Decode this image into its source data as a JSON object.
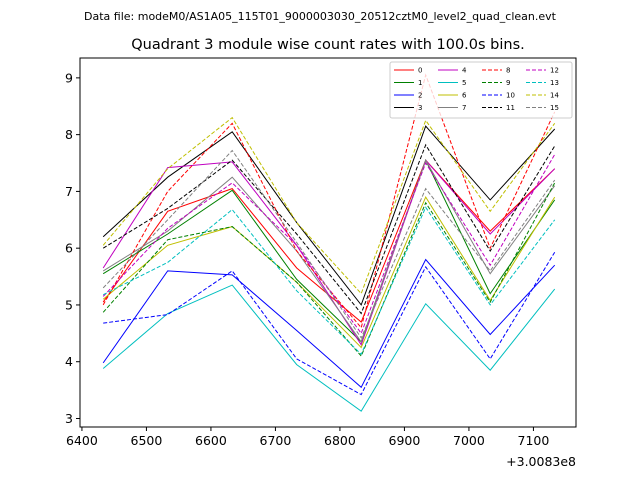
{
  "chart_data": {
    "type": "line",
    "suptitle": "Data file: modeM0/AS1A05_115T01_9000003030_20512cztM0_level2_quad_clean.evt",
    "title": "Quadrant 3 module wise count rates with 100.0s bins.",
    "xlabel": "",
    "ylabel": "",
    "x_offset_label": "+3.0083e8",
    "x": [
      6433,
      6533,
      6633,
      6733,
      6833,
      6933,
      7033,
      7133
    ],
    "xlim": [
      6397,
      7166
    ],
    "ylim": [
      2.85,
      9.35
    ],
    "x_ticks": [
      6400,
      6500,
      6600,
      6700,
      6800,
      6900,
      7000,
      7100
    ],
    "y_ticks": [
      3,
      4,
      5,
      6,
      7,
      8,
      9
    ],
    "grid": false,
    "legend_position": "top-right",
    "legend_columns": 4,
    "series": [
      {
        "name": "0",
        "color": "#ff0000",
        "dash": "solid",
        "values": [
          5.05,
          6.65,
          7.05,
          5.65,
          4.7,
          7.55,
          6.3,
          7.4
        ]
      },
      {
        "name": "1",
        "color": "#008000",
        "dash": "solid",
        "values": [
          5.55,
          6.25,
          7.02,
          5.45,
          4.35,
          7.55,
          5.2,
          6.85
        ]
      },
      {
        "name": "2",
        "color": "#0000ff",
        "dash": "solid",
        "values": [
          3.98,
          5.6,
          5.53,
          4.55,
          3.55,
          5.8,
          4.48,
          5.7
        ]
      },
      {
        "name": "3",
        "color": "#000000",
        "dash": "solid",
        "values": [
          6.2,
          7.25,
          8.05,
          6.45,
          5.0,
          8.15,
          6.85,
          8.1
        ]
      },
      {
        "name": "4",
        "color": "#c000c0",
        "dash": "solid",
        "values": [
          5.65,
          7.42,
          7.52,
          6.05,
          4.3,
          7.55,
          6.25,
          7.4
        ]
      },
      {
        "name": "5",
        "color": "#00bfbf",
        "dash": "solid",
        "values": [
          3.88,
          4.85,
          5.35,
          3.95,
          3.13,
          5.02,
          3.85,
          5.28
        ]
      },
      {
        "name": "6",
        "color": "#bfbf00",
        "dash": "solid",
        "values": [
          5.1,
          6.05,
          6.38,
          5.4,
          4.25,
          6.9,
          5.08,
          6.9
        ]
      },
      {
        "name": "7",
        "color": "#808080",
        "dash": "solid",
        "values": [
          5.6,
          6.3,
          7.25,
          5.95,
          4.35,
          7.55,
          5.55,
          7.1
        ]
      },
      {
        "name": "8",
        "color": "#ff0000",
        "dash": "dashed",
        "values": [
          5.0,
          7.0,
          8.2,
          5.95,
          4.6,
          9.05,
          6.0,
          8.4
        ]
      },
      {
        "name": "9",
        "color": "#008000",
        "dash": "dashed",
        "values": [
          4.87,
          6.15,
          6.38,
          5.4,
          4.1,
          6.8,
          5.05,
          7.15
        ]
      },
      {
        "name": "10",
        "color": "#0000ff",
        "dash": "dashed",
        "values": [
          4.68,
          4.83,
          5.6,
          4.05,
          3.42,
          5.67,
          4.05,
          5.93
        ]
      },
      {
        "name": "11",
        "color": "#000000",
        "dash": "dashed",
        "values": [
          6.0,
          6.7,
          7.55,
          6.25,
          4.85,
          7.82,
          5.95,
          7.8
        ]
      },
      {
        "name": "12",
        "color": "#c000c0",
        "dash": "dashed",
        "values": [
          5.15,
          6.35,
          7.15,
          6.05,
          4.5,
          7.5,
          5.7,
          7.65
        ]
      },
      {
        "name": "13",
        "color": "#00bfbf",
        "dash": "dashed",
        "values": [
          5.18,
          5.75,
          6.68,
          5.25,
          4.13,
          6.72,
          5.0,
          6.5
        ]
      },
      {
        "name": "14",
        "color": "#bfbf00",
        "dash": "dashed",
        "values": [
          6.05,
          7.4,
          8.3,
          6.45,
          5.2,
          8.25,
          6.65,
          8.2
        ]
      },
      {
        "name": "15",
        "color": "#808080",
        "dash": "dashed",
        "values": [
          5.3,
          6.5,
          7.72,
          6.1,
          4.42,
          7.05,
          5.6,
          7.2
        ]
      }
    ]
  }
}
